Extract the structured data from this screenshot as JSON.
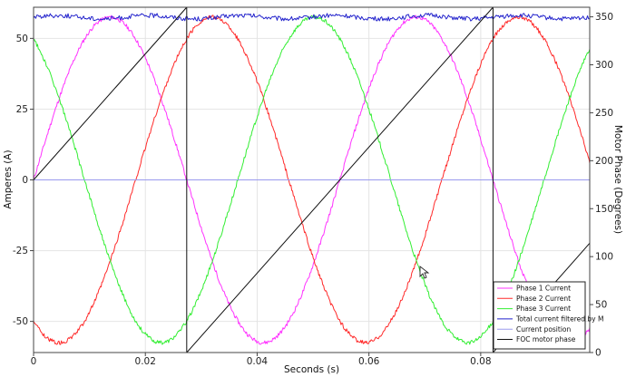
{
  "chart_data": {
    "type": "line",
    "xlabel": "Seconds (s)",
    "ylabel": "Amperes (A)",
    "y2label": "Motor Phase (Degrees)",
    "xlim": [
      0,
      0.0995
    ],
    "ylim": [
      -61,
      61
    ],
    "y2lim": [
      0,
      360
    ],
    "grid": true,
    "legend_position": "bottom-right",
    "x_ticks": [
      "0",
      "0.02",
      "0.04",
      "0.06",
      "0.08"
    ],
    "y_ticks": [
      "50",
      "25",
      "0",
      "-25",
      "-50"
    ],
    "y2_ticks": [
      "350",
      "300",
      "250",
      "200",
      "150",
      "100",
      "50",
      "0"
    ],
    "phase_current_model": {
      "amplitude": 57.5,
      "period": 0.0548
    },
    "series": [
      {
        "name": "Phase 1 Current",
        "color": "#ff33ff",
        "axis": "left",
        "points": [
          [
            0,
            0
          ],
          [
            0.0137,
            57.5
          ],
          [
            0.0274,
            0
          ],
          [
            0.0411,
            -57.5
          ],
          [
            0.0548,
            0
          ],
          [
            0.0685,
            57.5
          ],
          [
            0.0822,
            0
          ],
          [
            0.0959,
            -57.5
          ],
          [
            0.0995,
            -54.5
          ]
        ]
      },
      {
        "name": "Phase 2 Current",
        "color": "#ff2a2a",
        "axis": "left",
        "points": [
          [
            0,
            -49.8
          ],
          [
            0.0046,
            -57.5
          ],
          [
            0.0183,
            -28.8
          ],
          [
            0.032,
            57.5
          ],
          [
            0.0457,
            28.8
          ],
          [
            0.0594,
            -57.5
          ],
          [
            0.0731,
            -28.8
          ],
          [
            0.0868,
            57.5
          ],
          [
            0.0995,
            21
          ]
        ]
      },
      {
        "name": "Phase 3 Current",
        "color": "#33ee33",
        "axis": "left",
        "points": [
          [
            0,
            49.8
          ],
          [
            0.0091,
            -28.8
          ],
          [
            0.0228,
            -57.5
          ],
          [
            0.0365,
            28.8
          ],
          [
            0.0502,
            57.5
          ],
          [
            0.0639,
            -28.8
          ],
          [
            0.0776,
            -57.5
          ],
          [
            0.0913,
            28.8
          ],
          [
            0.0995,
            48
          ]
        ]
      },
      {
        "name": "Total current filtered by M",
        "color": "#2222cc",
        "axis": "left",
        "points": [
          [
            0,
            57.5
          ],
          [
            0.0995,
            57.5
          ]
        ]
      },
      {
        "name": "Current position",
        "color": "#9a9aee",
        "axis": "right",
        "points": [
          [
            0,
            180
          ],
          [
            0.0995,
            180
          ]
        ]
      },
      {
        "name": "FOC motor phase",
        "color": "#111111",
        "axis": "right",
        "points": [
          [
            0,
            180
          ],
          [
            0.0274,
            360
          ],
          [
            0.0274,
            0
          ],
          [
            0.0822,
            360
          ],
          [
            0.0822,
            0
          ],
          [
            0.0995,
            114
          ]
        ]
      }
    ]
  }
}
